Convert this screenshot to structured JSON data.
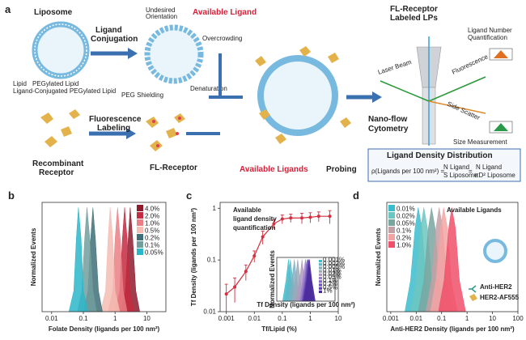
{
  "schematic": {
    "panel": "a",
    "liposome": "Liposome",
    "ligand_conjugation": [
      "Ligand",
      "Conjugation"
    ],
    "undesired_orientation": [
      "Undesired",
      "Orientation"
    ],
    "available_ligand": "Available Ligand",
    "overcrowding": "Overcrowding",
    "peg_shielding": "PEG Shielding",
    "denaturation": "Denaturation",
    "legend": [
      "Lipid",
      "PEGylated Lipid",
      "Ligand-Conjugated PEGylated Lipid"
    ],
    "fluorescence_labeling": [
      "Fluorescence",
      "Labeling"
    ],
    "recombinant_receptor": [
      "Recombinant",
      "Receptor"
    ],
    "fl_receptor": "FL-Receptor",
    "probing_red": "Available Ligands",
    "probing": "Probing",
    "fl_labeled": [
      "FL-Receptor",
      "Labeled LPs"
    ],
    "ligand_number": "Ligand Number",
    "quantification": "Quantification",
    "laser_beam": "Laser Beam",
    "fluorescence": "Fluorescence",
    "side_scatter": "Side Scatter",
    "nanoflow": [
      "Nano-flow",
      "Cytometry"
    ],
    "size_measurement": "Size Measurement",
    "density_distribution": "Ligand Density Distribution",
    "formula": {
      "lhs": "ρ(Ligands per 100 nm²) =",
      "n1": "N Ligand",
      "d1": "S Liposome",
      "eq": "=",
      "n2": "N Ligand",
      "d2": "πD² Liposome"
    }
  },
  "chart_data": [
    {
      "type": "area",
      "panel": "b",
      "xlabel": "Folate Density (ligands per 100 nm²)",
      "ylabel": "Normalized Events",
      "xscale": "log",
      "xlim": [
        0.005,
        40
      ],
      "xticks": [
        0.01,
        0.1,
        1,
        10
      ],
      "ylim": [
        0,
        1.05
      ],
      "legend": "upper right",
      "series": [
        {
          "name": "4.0%",
          "color": "#8e1b2e",
          "x": [
            1.5,
            2.1,
            2.6,
            3,
            3.6,
            4.5,
            6
          ],
          "values": [
            0,
            0.2,
            0.7,
            1,
            0.7,
            0.2,
            0
          ]
        },
        {
          "name": "2.0%",
          "color": "#c42a40",
          "x": [
            1,
            1.4,
            1.7,
            2,
            2.4,
            3,
            4
          ],
          "values": [
            0,
            0.2,
            0.7,
            1,
            0.7,
            0.2,
            0
          ]
        },
        {
          "name": "1.0%",
          "color": "#ea7f85",
          "x": [
            0.6,
            0.85,
            1,
            1.2,
            1.45,
            1.8,
            2.4
          ],
          "values": [
            0,
            0.2,
            0.7,
            1,
            0.7,
            0.2,
            0
          ]
        },
        {
          "name": "0.5%",
          "color": "#f5bdb3",
          "x": [
            0.35,
            0.5,
            0.6,
            0.7,
            0.85,
            1,
            1.4
          ],
          "values": [
            0,
            0.2,
            0.7,
            1,
            0.7,
            0.2,
            0
          ]
        },
        {
          "name": "0.2%",
          "color": "#3f6f78",
          "x": [
            0.1,
            0.14,
            0.17,
            0.2,
            0.24,
            0.3,
            0.4
          ],
          "values": [
            0,
            0.2,
            0.7,
            1,
            0.7,
            0.2,
            0
          ]
        },
        {
          "name": "0.1%",
          "color": "#729d9d",
          "x": [
            0.065,
            0.09,
            0.11,
            0.13,
            0.16,
            0.2,
            0.26
          ],
          "values": [
            0,
            0.2,
            0.7,
            1,
            0.7,
            0.2,
            0
          ]
        },
        {
          "name": "0.05%",
          "color": "#2bb6c9",
          "x": [
            0.035,
            0.05,
            0.06,
            0.07,
            0.085,
            0.1,
            0.14
          ],
          "values": [
            0,
            0.2,
            0.7,
            1,
            0.7,
            0.2,
            0
          ]
        }
      ]
    },
    {
      "type": "line",
      "panel": "c",
      "xlabel": "Tf/Lipid (%)",
      "ylabel": "Tf Density (ligands per 100 nm²)",
      "xscale": "log",
      "yscale": "log",
      "xlim": [
        0.0006,
        10
      ],
      "xticks": [
        0.001,
        0.01,
        0.1,
        1,
        10
      ],
      "ylim": [
        0.01,
        1.3
      ],
      "yticks": [
        0.01,
        0.1,
        1
      ],
      "color": "#d03040",
      "annotations": [
        "Available",
        "ligand density",
        "quantification"
      ],
      "x": [
        0.001,
        0.002,
        0.005,
        0.01,
        0.02,
        0.05,
        0.1,
        0.2,
        0.5,
        1,
        2,
        5
      ],
      "values": [
        0.022,
        0.03,
        0.06,
        0.12,
        0.28,
        0.5,
        0.62,
        0.65,
        0.65,
        0.67,
        0.7,
        0.7
      ],
      "errors": [
        0.012,
        0.015,
        0.02,
        0.03,
        0.08,
        0.1,
        0.12,
        0.12,
        0.15,
        0.15,
        0.15,
        0.2
      ]
    },
    {
      "type": "area",
      "panel": "d",
      "xlabel": "Anti-HER2 Density (ligands per 100 nm²)",
      "ylabel": "Normalized Events",
      "xscale": "log",
      "xlim": [
        0.0007,
        100
      ],
      "xticks": [
        0.001,
        0.01,
        0.1,
        1,
        10,
        100
      ],
      "ylim": [
        0,
        1.05
      ],
      "legend": "upper left",
      "annotations": [
        "Available Ligands",
        "Anti-HER2",
        "HER2-AF555"
      ],
      "series": [
        {
          "name": "0.01%",
          "color": "#3bbccc",
          "x": [
            0.0036,
            0.006,
            0.009,
            0.012,
            0.017,
            0.024,
            0.042
          ],
          "values": [
            0,
            0.3,
            0.8,
            1,
            0.8,
            0.3,
            0
          ]
        },
        {
          "name": "0.02%",
          "color": "#6cc5c0",
          "x": [
            0.006,
            0.01,
            0.015,
            0.02,
            0.028,
            0.04,
            0.07
          ],
          "values": [
            0,
            0.3,
            0.8,
            1,
            0.8,
            0.3,
            0
          ]
        },
        {
          "name": "0.05%",
          "color": "#7aa6a0",
          "x": [
            0.012,
            0.02,
            0.03,
            0.04,
            0.056,
            0.08,
            0.14
          ],
          "values": [
            0,
            0.3,
            0.8,
            1,
            0.8,
            0.3,
            0
          ]
        },
        {
          "name": "0.1%",
          "color": "#c3a0a5",
          "x": [
            0.024,
            0.04,
            0.06,
            0.08,
            0.11,
            0.16,
            0.28
          ],
          "values": [
            0,
            0.3,
            0.8,
            1,
            0.8,
            0.3,
            0
          ]
        },
        {
          "name": "0.2%",
          "color": "#f4a3a3",
          "x": [
            0.036,
            0.06,
            0.09,
            0.12,
            0.17,
            0.24,
            0.42
          ],
          "values": [
            0,
            0.3,
            0.8,
            1,
            0.8,
            0.3,
            0
          ]
        },
        {
          "name": "1.0%",
          "color": "#f0506a",
          "x": [
            0.075,
            0.125,
            0.19,
            0.25,
            0.35,
            0.5,
            0.88
          ],
          "values": [
            0,
            0.3,
            0.8,
            1,
            0.8,
            0.3,
            0
          ]
        }
      ]
    },
    {
      "type": "area",
      "xlabel": "Tf Density (ligands per 100 nm²)",
      "ylabel": "Normalized Events",
      "xscale": "log",
      "xlim": [
        0.005,
        5
      ],
      "ylim": [
        0,
        1.05
      ],
      "legend": "upper right",
      "series": [
        {
          "name": "0.001%",
          "color": "#39c0cf",
          "x": [
            0.01,
            0.015,
            0.02,
            0.027,
            0.04
          ],
          "values": [
            0,
            0.5,
            1,
            0.5,
            0
          ]
        },
        {
          "name": "0.002%",
          "color": "#5fb8c8",
          "x": [
            0.0125,
            0.019,
            0.025,
            0.034,
            0.05
          ],
          "values": [
            0,
            0.5,
            1,
            0.5,
            0
          ]
        },
        {
          "name": "0.005%",
          "color": "#7fb0c0",
          "x": [
            0.02,
            0.03,
            0.04,
            0.054,
            0.08
          ],
          "values": [
            0,
            0.5,
            1,
            0.5,
            0
          ]
        },
        {
          "name": "0.01%",
          "color": "#9aa8b8",
          "x": [
            0.03,
            0.045,
            0.06,
            0.081,
            0.12
          ],
          "values": [
            0,
            0.5,
            1,
            0.5,
            0
          ]
        },
        {
          "name": "0.02%",
          "color": "#b098c0",
          "x": [
            0.05,
            0.075,
            0.1,
            0.135,
            0.2
          ],
          "values": [
            0,
            0.5,
            1,
            0.5,
            0
          ]
        },
        {
          "name": "0.05%",
          "color": "#9a80c8",
          "x": [
            0.075,
            0.11,
            0.15,
            0.2,
            0.3
          ],
          "values": [
            0,
            0.5,
            1,
            0.5,
            0
          ]
        },
        {
          "name": "0.1%",
          "color": "#8266c8",
          "x": [
            0.09,
            0.135,
            0.18,
            0.24,
            0.36
          ],
          "values": [
            0,
            0.5,
            1,
            0.5,
            0
          ]
        },
        {
          "name": "0.2%",
          "color": "#6d50c0",
          "x": [
            0.1,
            0.15,
            0.2,
            0.27,
            0.4
          ],
          "values": [
            0,
            0.5,
            1,
            0.5,
            0
          ]
        },
        {
          "name": "0.5%",
          "color": "#5a3db0",
          "x": [
            0.11,
            0.165,
            0.22,
            0.3,
            0.44
          ],
          "values": [
            0,
            0.5,
            1,
            0.5,
            0
          ]
        },
        {
          "name": "1%",
          "color": "#4a2a9a",
          "x": [
            0.12,
            0.18,
            0.24,
            0.32,
            0.48
          ],
          "values": [
            0,
            0.5,
            1,
            0.5,
            0
          ]
        }
      ]
    }
  ]
}
